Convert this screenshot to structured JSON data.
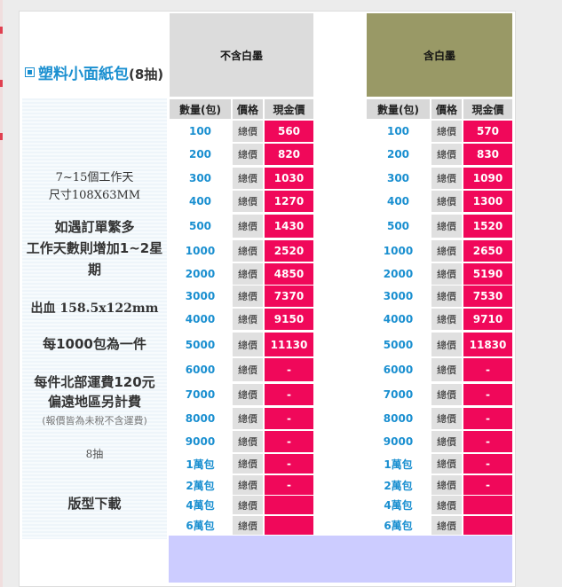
{
  "product": {
    "title": "塑料小面紙包",
    "suffix": "(8抽)"
  },
  "info": {
    "lead_time": "7~15個工作天",
    "size": "尺寸108X63MM",
    "busy_line1": "如遇訂單繁多",
    "busy_line2": "工作天數則增加1~2星",
    "busy_line3": "期",
    "bleed": "出血 158.5x122mm",
    "unit": "每1000包為一件",
    "shipping_line1": "每件北部運費120元",
    "shipping_line2": "偏遠地區另計費",
    "tax_note": "(報價皆為未稅不含運費)",
    "sheets": "8抽",
    "download": "版型下載"
  },
  "columns": [
    {
      "title": "不含白墨",
      "header_color": "#dcdcdc"
    },
    {
      "title": "含白墨",
      "header_color": "#999966"
    }
  ],
  "table_headers": {
    "qty": "數量(包)",
    "total": "價格",
    "price": "現金價"
  },
  "rows": [
    {
      "qty": "100",
      "total": "總價",
      "price_a": "560",
      "price_b": "570"
    },
    {
      "qty": "200",
      "total": "總價",
      "price_a": "820",
      "price_b": "830"
    },
    {
      "qty": "300",
      "total": "總價",
      "price_a": "1030",
      "price_b": "1090"
    },
    {
      "qty": "400",
      "total": "總價",
      "price_a": "1270",
      "price_b": "1300"
    },
    {
      "qty": "500",
      "total": "總價",
      "price_a": "1430",
      "price_b": "1520"
    },
    {
      "qty": "1000",
      "total": "總價",
      "price_a": "2520",
      "price_b": "2650"
    },
    {
      "qty": "2000",
      "total": "總價",
      "price_a": "4850",
      "price_b": "5190"
    },
    {
      "qty": "3000",
      "total": "總價",
      "price_a": "7370",
      "price_b": "7530"
    },
    {
      "qty": "4000",
      "total": "總價",
      "price_a": "9150",
      "price_b": "9710"
    },
    {
      "qty": "5000",
      "total": "總價",
      "price_a": "11130",
      "price_b": "11830"
    },
    {
      "qty": "6000",
      "total": "總價",
      "price_a": "-",
      "price_b": "-"
    },
    {
      "qty": "7000",
      "total": "總價",
      "price_a": "-",
      "price_b": "-"
    },
    {
      "qty": "8000",
      "total": "總價",
      "price_a": "-",
      "price_b": "-"
    },
    {
      "qty": "9000",
      "total": "總價",
      "price_a": "-",
      "price_b": "-"
    },
    {
      "qty": "1萬包",
      "total": "總價",
      "price_a": "-",
      "price_b": "-"
    },
    {
      "qty": "2萬包",
      "total": "總價",
      "price_a": "-",
      "price_b": "-"
    },
    {
      "qty": "4萬包",
      "total": "總價",
      "price_a": "",
      "price_b": ""
    },
    {
      "qty": "6萬包",
      "total": "總價",
      "price_a": "",
      "price_b": ""
    }
  ]
}
